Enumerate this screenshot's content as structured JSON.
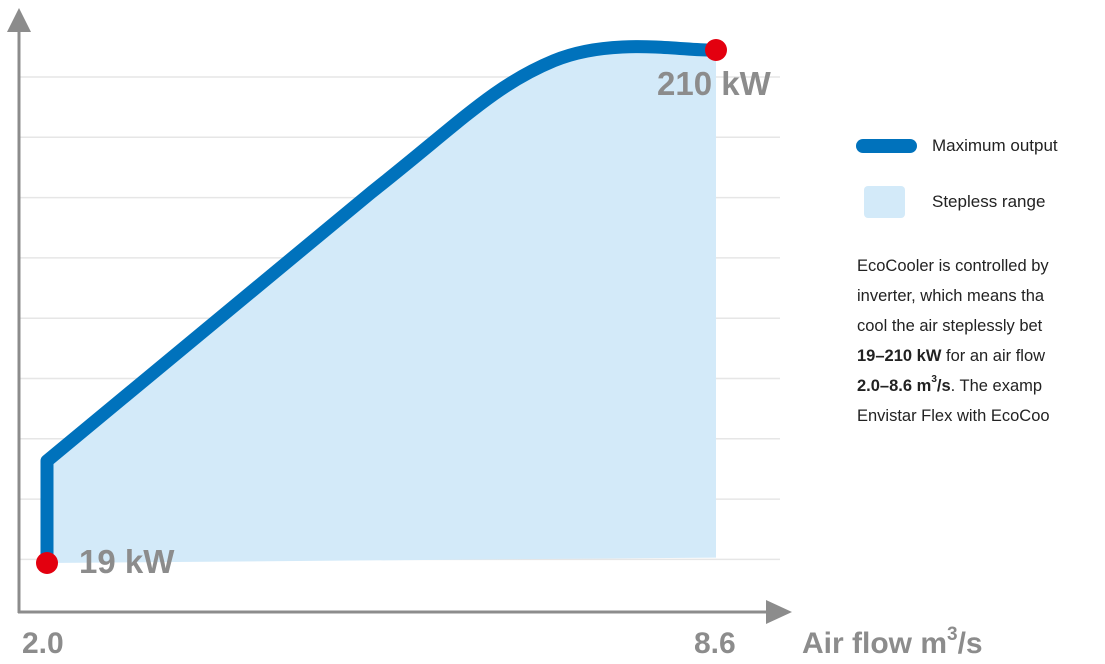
{
  "chart_data": {
    "type": "area",
    "title": "",
    "xlabel": "Air flow m³/s",
    "xlabel_parts": {
      "text": "Air flow m",
      "sup": "3",
      "suffix": "/s"
    },
    "ylabel": "",
    "x_ticks": [
      "2.0",
      "8.6"
    ],
    "xlim": [
      2.0,
      8.6
    ],
    "ylim": [
      19,
      210
    ],
    "grid": true,
    "legend_placement": "right",
    "series": [
      {
        "name": "Maximum output",
        "kind": "line",
        "x": [
          2.0,
          2.0,
          5.2,
          7.0,
          8.6
        ],
        "y": [
          19,
          57,
          157,
          206,
          210
        ]
      },
      {
        "name": "Stepless range",
        "kind": "area",
        "upper": {
          "x": [
            2.0,
            2.0,
            5.2,
            7.0,
            8.6
          ],
          "y": [
            19,
            57,
            157,
            206,
            210
          ]
        },
        "lower": {
          "x": [
            2.0,
            8.6
          ],
          "y": [
            19,
            21
          ]
        }
      }
    ],
    "annotations": [
      {
        "id": "min",
        "text": "19 kW",
        "x": 2.0,
        "y": 19
      },
      {
        "id": "max",
        "text": "210 kW",
        "x": 8.6,
        "y": 210
      }
    ]
  },
  "legend": {
    "items": [
      {
        "label": "Maximum output"
      },
      {
        "label": "Stepless range"
      }
    ]
  },
  "description": {
    "line1": "EcoCooler is controlled by",
    "line2": "inverter, which means tha",
    "line3": "cool the air steplessly bet",
    "line4_bold": "19–210 kW",
    "line4_rest": " for an air flow",
    "line5_bold": "2.0–8.6 m",
    "line5_sup": "3",
    "line5_bold_end": "/s",
    "line5_rest": ". The examp",
    "line6": "Envistar Flex with EcoCoo"
  },
  "colors": {
    "line": "#0072bc",
    "area": "#d3eaf9",
    "marker": "#e3000f",
    "axis": "#8c8c8c",
    "grid": "#e6e6e6"
  }
}
